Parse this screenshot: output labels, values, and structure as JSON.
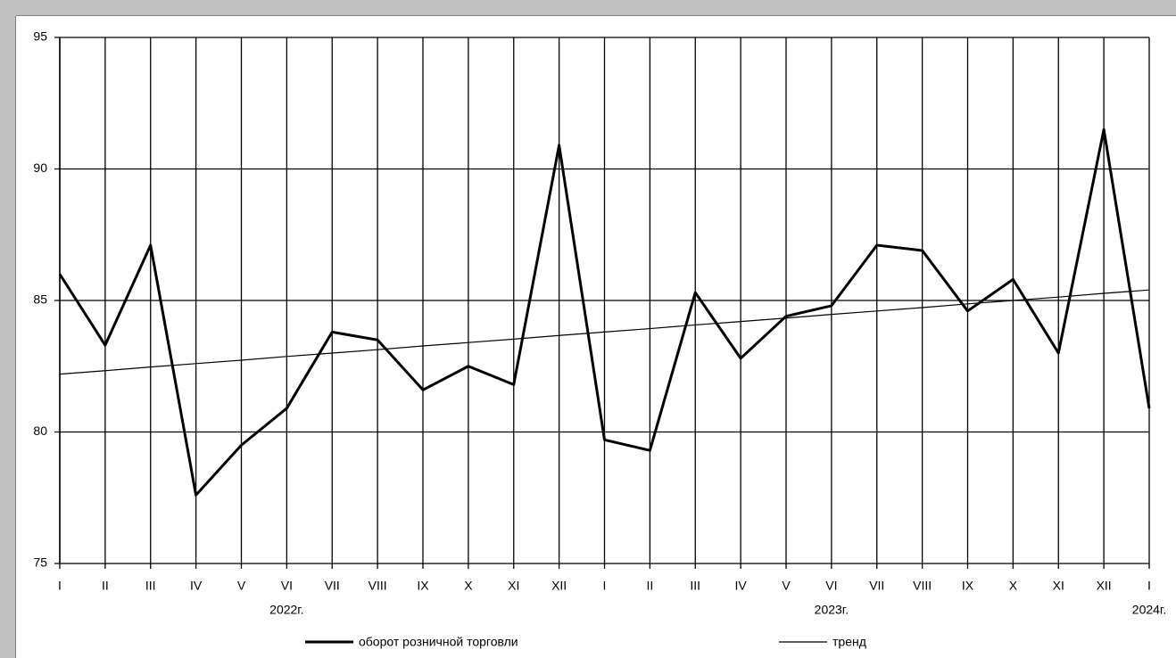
{
  "chart_data": {
    "type": "line",
    "categories": [
      "I",
      "II",
      "III",
      "IV",
      "V",
      "VI",
      "VII",
      "VIII",
      "IX",
      "X",
      "XI",
      "XII",
      "I",
      "II",
      "III",
      "IV",
      "V",
      "VI",
      "VII",
      "VIII",
      "IX",
      "X",
      "XI",
      "XII",
      "I"
    ],
    "year_labels": [
      null,
      null,
      null,
      null,
      null,
      "2022г.",
      null,
      null,
      null,
      null,
      null,
      null,
      null,
      null,
      null,
      null,
      null,
      "2023г.",
      null,
      null,
      null,
      null,
      null,
      null,
      "2024г."
    ],
    "series": [
      {
        "name": "оборот розничной торговли",
        "color": "#000000",
        "width": 3,
        "values": [
          86.0,
          83.3,
          87.1,
          77.6,
          79.5,
          80.9,
          83.8,
          83.5,
          81.6,
          82.5,
          81.8,
          90.9,
          79.7,
          79.3,
          85.3,
          82.8,
          84.4,
          84.8,
          87.1,
          86.9,
          84.6,
          85.8,
          83.0,
          91.5,
          80.9
        ]
      },
      {
        "name": "тренд",
        "color": "#000000",
        "width": 1.2,
        "values": [
          82.2,
          82.33,
          82.47,
          82.6,
          82.73,
          82.87,
          83.0,
          83.13,
          83.27,
          83.4,
          83.53,
          83.67,
          83.8,
          83.93,
          84.07,
          84.2,
          84.33,
          84.47,
          84.6,
          84.73,
          84.87,
          85.0,
          85.13,
          85.27,
          85.4
        ]
      }
    ],
    "ylim": [
      75,
      95
    ],
    "yticks": [
      75,
      80,
      85,
      90,
      95
    ],
    "grid": true
  }
}
